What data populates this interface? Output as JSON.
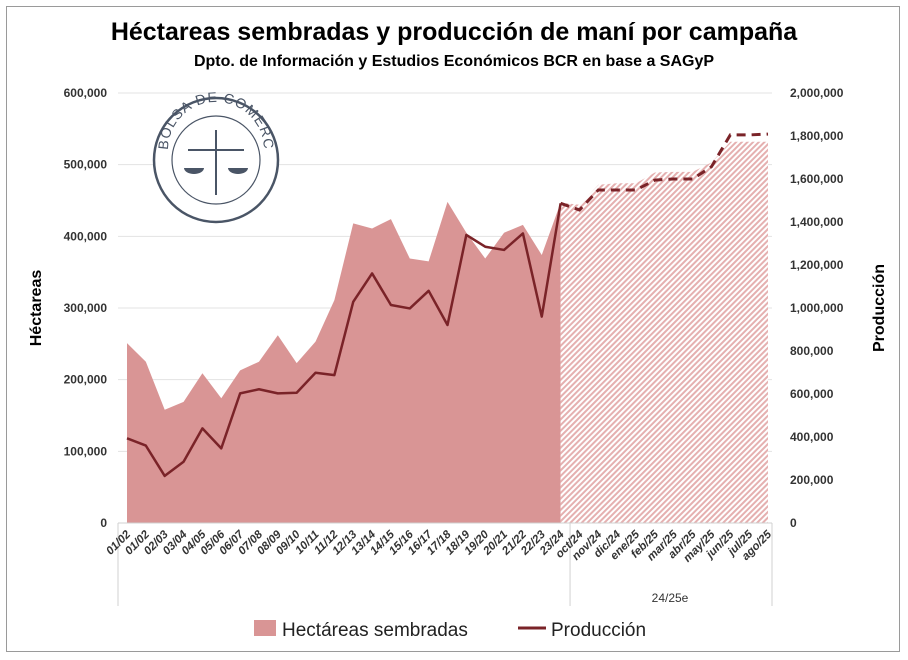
{
  "chart_data": {
    "type": "area+line",
    "title": "Héctareas sembradas y producción de maní por campaña",
    "subtitle": "Dpto. de Información y Estudios Económicos BCR en base a SAGyP",
    "ylabel": "Héctareas",
    "y2label": "Producción",
    "ylim": [
      0,
      600000
    ],
    "y2lim": [
      0,
      2000000
    ],
    "yticks": [
      "0",
      "100,000",
      "200,000",
      "300,000",
      "400,000",
      "500,000",
      "600,000"
    ],
    "y2ticks": [
      "0",
      "200,000",
      "400,000",
      "600,000",
      "800,000",
      "1,000,000",
      "1,200,000",
      "1,400,000",
      "1,600,000",
      "1,800,000",
      "2,000,000"
    ],
    "grid": true,
    "legend_position": "bottom",
    "categories": [
      "01/02",
      "01/02",
      "02/03",
      "03/04",
      "04/05",
      "05/06",
      "06/07",
      "07/08",
      "08/09",
      "09/10",
      "10/11",
      "11/12",
      "12/13",
      "13/14",
      "14/15",
      "15/16",
      "16/17",
      "17/18",
      "18/19",
      "19/20",
      "20/21",
      "21/22",
      "22/23",
      "23/24",
      "oct/24",
      "nov/24",
      "dic/24",
      "ene/25",
      "feb/25",
      "mar/25",
      "abr/25",
      "may/25",
      "jun/25",
      "jul/25",
      "ago/25"
    ],
    "group_label": "24/25e",
    "estimate_start_index": 23,
    "series": [
      {
        "name": "Hectáreas sembradas",
        "type": "area",
        "axis": "left",
        "color": "#d99595",
        "values": [
          251000,
          225000,
          158000,
          169000,
          209000,
          174000,
          213000,
          225000,
          262000,
          223000,
          253000,
          311000,
          418000,
          411000,
          424000,
          369000,
          365000,
          448000,
          405000,
          369000,
          405000,
          416000,
          374000,
          447000,
          444000,
          472000,
          474000,
          474000,
          489000,
          490000,
          490000,
          503000,
          532000,
          532000,
          532000
        ]
      },
      {
        "name": "Producción",
        "type": "line",
        "axis": "right",
        "color": "#7a2328",
        "values": [
          394000,
          360000,
          219000,
          285000,
          440000,
          347000,
          603000,
          622000,
          603000,
          606000,
          699000,
          688000,
          1029000,
          1161000,
          1014000,
          998000,
          1080000,
          921000,
          1340000,
          1285000,
          1270000,
          1347000,
          960000,
          1487000,
          1456000,
          1549000,
          1549000,
          1549000,
          1595000,
          1600000,
          1600000,
          1657000,
          1805000,
          1805000,
          1809000
        ]
      }
    ]
  },
  "logo": {
    "text": "BOLSA DE COMERCIO DE ROSARIO"
  }
}
